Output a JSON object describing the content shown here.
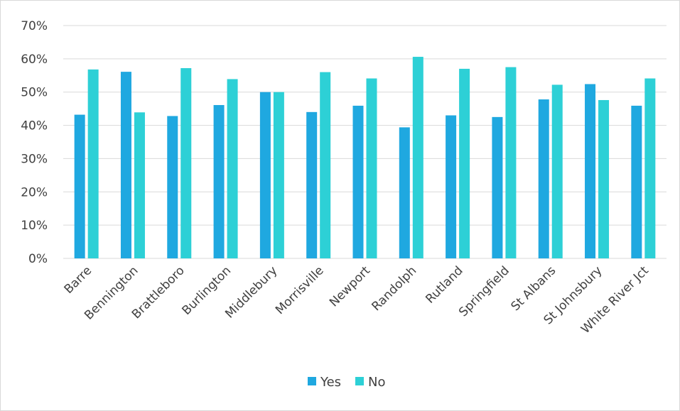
{
  "chart_data": {
    "type": "bar",
    "title": "",
    "xlabel": "",
    "ylabel": "",
    "ylim": [
      0,
      70
    ],
    "y_ticks": [
      0,
      10,
      20,
      30,
      40,
      50,
      60,
      70
    ],
    "y_tick_format": "percent",
    "grid": "horizontal",
    "legend_position": "bottom",
    "categories": [
      "Barre",
      "Bennington",
      "Brattleboro",
      "Burlington",
      "Middlebury",
      "Morrisville",
      "Newport",
      "Randolph",
      "Rutland",
      "Springfield",
      "St Albans",
      "St Johnsbury",
      "White River Jct"
    ],
    "series": [
      {
        "name": "Yes",
        "color": "#1fa8e0",
        "values": [
          43.2,
          56.1,
          42.8,
          46.1,
          50.0,
          44.0,
          45.9,
          39.4,
          43.0,
          42.5,
          47.8,
          52.4,
          45.9
        ]
      },
      {
        "name": "No",
        "color": "#2dd0d6",
        "values": [
          56.8,
          43.9,
          57.2,
          53.9,
          50.0,
          56.0,
          54.1,
          60.6,
          57.0,
          57.5,
          52.2,
          47.6,
          54.1
        ]
      }
    ]
  }
}
